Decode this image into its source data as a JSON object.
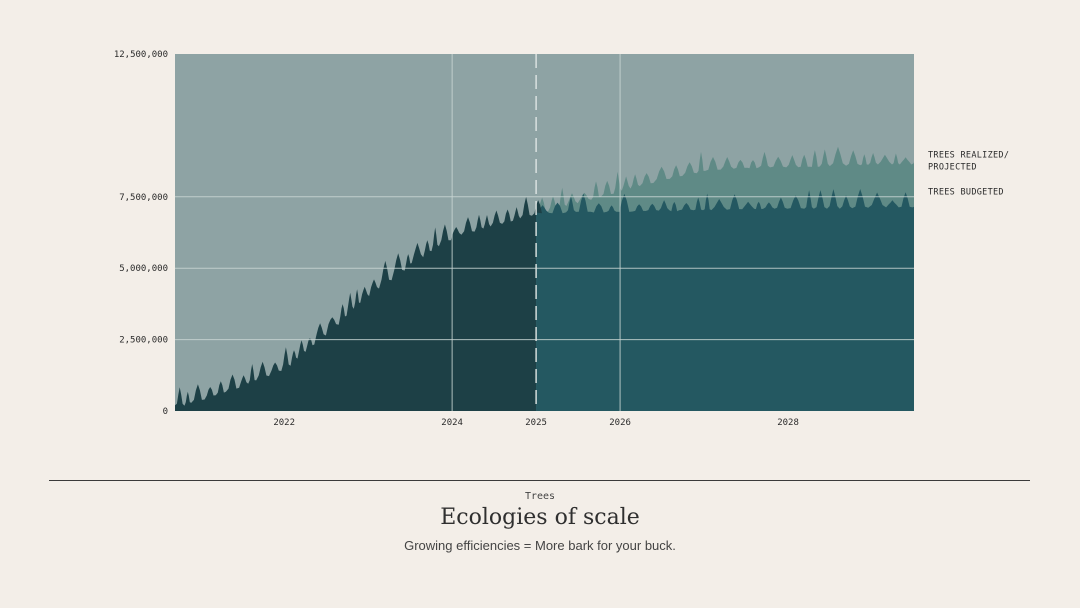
{
  "chart_data": {
    "type": "area",
    "ylim": [
      0,
      12500000
    ],
    "yticks": [
      {
        "value": 0,
        "label": "0"
      },
      {
        "value": 2500000,
        "label": "2,500,000"
      },
      {
        "value": 5000000,
        "label": "5,000,000"
      },
      {
        "value": 7500000,
        "label": "7,500,000"
      },
      {
        "value": 12500000,
        "label": "12,500,000"
      }
    ],
    "xlim": [
      2020.7,
      2029.5
    ],
    "xticks": [
      {
        "value": 2022,
        "label": "2022"
      },
      {
        "value": 2024,
        "label": "2024"
      },
      {
        "value": 2025,
        "label": "2025"
      },
      {
        "value": 2026,
        "label": "2026"
      },
      {
        "value": 2028,
        "label": "2028"
      }
    ],
    "vertical_gridlines": [
      2024,
      2026
    ],
    "divider_x": 2025,
    "grid": true,
    "series": [
      {
        "name": "TREES REALIZED/ PROJECTED",
        "color": "#5f8a86",
        "x": [
          2020.7,
          2021.0,
          2021.5,
          2022.0,
          2022.5,
          2023.0,
          2023.5,
          2024.0,
          2024.5,
          2025.0,
          2025.5,
          2026.0,
          2026.5,
          2027.0,
          2027.5,
          2028.0,
          2028.5,
          2029.0,
          2029.5
        ],
        "values": [
          200000,
          500000,
          1000000,
          1600000,
          2900000,
          4200000,
          5300000,
          6200000,
          6600000,
          7000000,
          7400000,
          7800000,
          8200000,
          8500000,
          8600000,
          8600000,
          8650000,
          8700000,
          8700000
        ]
      },
      {
        "name": "TREES BUDGETED",
        "color": "#245861",
        "x": [
          2020.7,
          2021.0,
          2021.5,
          2022.0,
          2022.5,
          2023.0,
          2023.5,
          2024.0,
          2024.5,
          2025.0,
          2025.5,
          2026.0,
          2026.5,
          2027.0,
          2027.5,
          2028.0,
          2028.5,
          2029.0,
          2029.5
        ],
        "values": [
          200000,
          500000,
          1000000,
          1600000,
          2900000,
          4200000,
          5300000,
          6200000,
          6600000,
          7000000,
          7050000,
          7050000,
          7100000,
          7100000,
          7150000,
          7150000,
          7150000,
          7200000,
          7200000
        ]
      }
    ],
    "legend_labels": [
      [
        "TREES REALIZED/",
        "PROJECTED"
      ],
      [
        "TREES BUDGETED"
      ]
    ],
    "legend_placement": "right"
  },
  "colors": {
    "background": "#f3eee8",
    "plot_background": "#8ea3a4",
    "past_fill": "#1d4046",
    "budget_fill": "#245861",
    "projected_fill": "#5f8a86",
    "grid": "#c9d6d4"
  },
  "caption": {
    "eyebrow": "Trees",
    "title": "Ecologies of scale",
    "subtitle": "Growing efficiencies = More bark for your buck."
  }
}
